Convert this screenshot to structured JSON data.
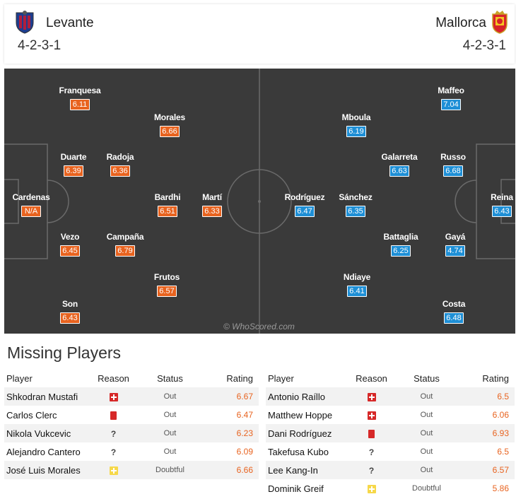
{
  "home": {
    "team": "Levante",
    "formation": "4-2-3-1",
    "crest": "levante-crest-icon",
    "color": "#e8631f",
    "players": [
      {
        "name": "Franquesa",
        "rating": "6.11"
      },
      {
        "name": "Morales",
        "rating": "6.66"
      },
      {
        "name": "Duarte",
        "rating": "6.39"
      },
      {
        "name": "Radoja",
        "rating": "6.36"
      },
      {
        "name": "Cardenas",
        "rating": "N/A"
      },
      {
        "name": "Bardhi",
        "rating": "6.51"
      },
      {
        "name": "Martí",
        "rating": "6.33"
      },
      {
        "name": "Vezo",
        "rating": "6.45"
      },
      {
        "name": "Campaña",
        "rating": "6.79"
      },
      {
        "name": "Frutos",
        "rating": "6.57"
      },
      {
        "name": "Son",
        "rating": "6.43"
      }
    ]
  },
  "away": {
    "team": "Mallorca",
    "formation": "4-2-3-1",
    "crest": "mallorca-crest-icon",
    "color": "#1e8fd6",
    "players": [
      {
        "name": "Maffeo",
        "rating": "7.04"
      },
      {
        "name": "Mboula",
        "rating": "6.19"
      },
      {
        "name": "Galarreta",
        "rating": "6.63"
      },
      {
        "name": "Russo",
        "rating": "6.68"
      },
      {
        "name": "Rodríguez",
        "rating": "6.47"
      },
      {
        "name": "Sánchez",
        "rating": "6.35"
      },
      {
        "name": "Reina",
        "rating": "6.43"
      },
      {
        "name": "Battaglia",
        "rating": "6.25"
      },
      {
        "name": "Gayá",
        "rating": "4.74"
      },
      {
        "name": "Ndiaye",
        "rating": "6.41"
      },
      {
        "name": "Costa",
        "rating": "6.48"
      }
    ]
  },
  "watermark": "© WhoScored.com",
  "missing": {
    "title": "Missing Players",
    "headers": {
      "player": "Player",
      "reason": "Reason",
      "status": "Status",
      "rating": "Rating"
    },
    "home": [
      {
        "player": "Shkodran Mustafi",
        "reason": "injury",
        "status": "Out",
        "rating": "6.67"
      },
      {
        "player": "Carlos Clerc",
        "reason": "red-card",
        "status": "Out",
        "rating": "6.47"
      },
      {
        "player": "Nikola Vukcevic",
        "reason": "unknown",
        "reason_text": "?",
        "status": "Out",
        "rating": "6.23"
      },
      {
        "player": "Alejandro Cantero",
        "reason": "unknown",
        "reason_text": "?",
        "status": "Out",
        "rating": "6.09"
      },
      {
        "player": "José Luis Morales",
        "reason": "doubtful",
        "status": "Doubtful",
        "rating": "6.66"
      }
    ],
    "away": [
      {
        "player": "Antonio Raíllo",
        "reason": "injury",
        "status": "Out",
        "rating": "6.5"
      },
      {
        "player": "Matthew Hoppe",
        "reason": "injury",
        "status": "Out",
        "rating": "6.06"
      },
      {
        "player": "Dani Rodríguez",
        "reason": "red-card",
        "status": "Out",
        "rating": "6.93"
      },
      {
        "player": "Takefusa Kubo",
        "reason": "unknown",
        "reason_text": "?",
        "status": "Out",
        "rating": "6.5"
      },
      {
        "player": "Lee Kang-In",
        "reason": "unknown",
        "reason_text": "?",
        "status": "Out",
        "rating": "6.57"
      },
      {
        "player": "Dominik Greif",
        "reason": "doubtful",
        "status": "Doubtful",
        "rating": "5.86"
      }
    ]
  }
}
